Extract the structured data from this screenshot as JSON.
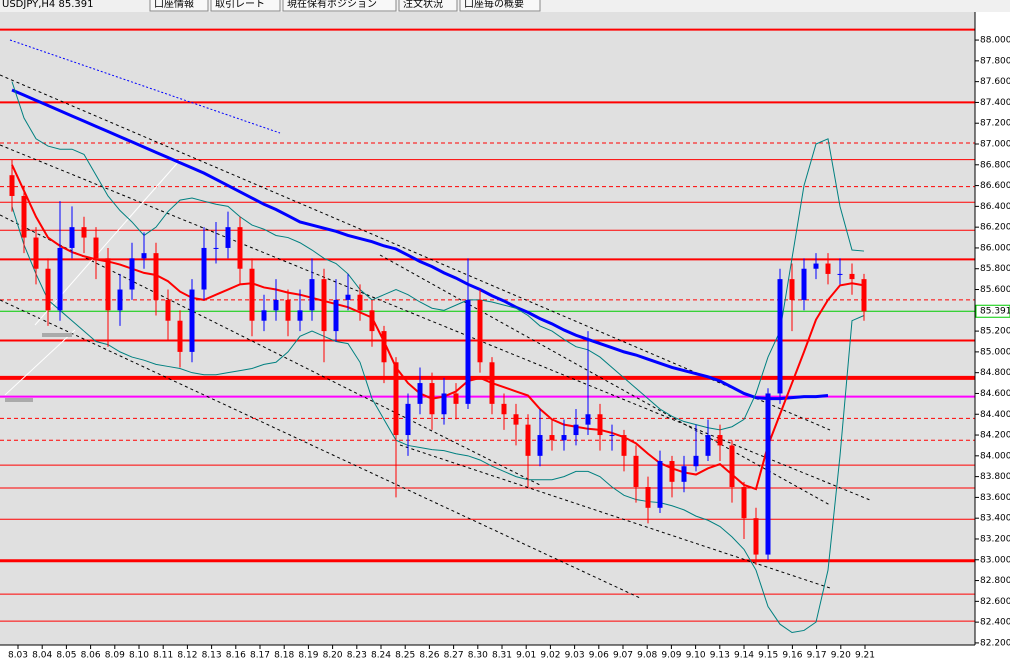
{
  "header": {
    "symbol": "USDJPY,H4 85.391",
    "tabs": [
      "口座情報",
      "取引レート",
      "現在保有ポジション",
      "注文状況",
      "口座毎の概要"
    ]
  },
  "chart_data": {
    "type": "candlestick",
    "up_color": "#0000ff",
    "down_color": "#ff0000",
    "background": "#e0e0e0",
    "grid": false,
    "ylim": [
      82.18,
      88.27
    ],
    "yticks": [
      {
        "value": 82.2,
        "label": "82.200"
      },
      {
        "value": 82.4,
        "label": "82.400"
      },
      {
        "value": 82.6,
        "label": "82.600"
      },
      {
        "value": 82.8,
        "label": "82.800"
      },
      {
        "value": 83.0,
        "label": "83.000"
      },
      {
        "value": 83.2,
        "label": "83.200"
      },
      {
        "value": 83.4,
        "label": "83.400"
      },
      {
        "value": 83.6,
        "label": "83.600"
      },
      {
        "value": 83.8,
        "label": "83.800"
      },
      {
        "value": 84.0,
        "label": "84.000"
      },
      {
        "value": 84.2,
        "label": "84.200"
      },
      {
        "value": 84.4,
        "label": "84.400"
      },
      {
        "value": 84.6,
        "label": "84.600"
      },
      {
        "value": 84.8,
        "label": "84.800"
      },
      {
        "value": 85.0,
        "label": "85.000"
      },
      {
        "value": 85.2,
        "label": "85.200"
      },
      {
        "value": 85.4,
        "label": "85.400"
      },
      {
        "value": 85.6,
        "label": "85.600"
      },
      {
        "value": 85.8,
        "label": "85.800"
      },
      {
        "value": 86.0,
        "label": "86.000"
      },
      {
        "value": 86.2,
        "label": "86.200"
      },
      {
        "value": 86.4,
        "label": "86.400"
      },
      {
        "value": 86.6,
        "label": "86.600"
      },
      {
        "value": 86.8,
        "label": "86.800"
      },
      {
        "value": 87.0,
        "label": "87.000"
      },
      {
        "value": 87.2,
        "label": "87.200"
      },
      {
        "value": 87.4,
        "label": "87.400"
      },
      {
        "value": 87.6,
        "label": "87.600"
      },
      {
        "value": 87.8,
        "label": "87.800"
      },
      {
        "value": 88.0,
        "label": "88.000"
      }
    ],
    "x_labels": [
      "8.03",
      "8.04",
      "8.05",
      "8.06",
      "8.09",
      "8.10",
      "8.11",
      "8.12",
      "8.13",
      "8.16",
      "8.17",
      "8.18",
      "8.19",
      "8.20",
      "8.23",
      "8.24",
      "8.25",
      "8.26",
      "8.27",
      "8.30",
      "8.31",
      "9.01",
      "9.02",
      "9.03",
      "9.06",
      "9.07",
      "9.08",
      "9.09",
      "9.10",
      "9.13",
      "9.14",
      "9.15",
      "9.16",
      "9.17",
      "9.20",
      "9.21"
    ],
    "current_price": {
      "value": 85.391,
      "label": "85.391",
      "color": "#00cc00"
    },
    "open": [
      86.7,
      86.5,
      86.1,
      85.8,
      85.4,
      86.0,
      86.2,
      86.1,
      85.9,
      85.4,
      85.6,
      85.9,
      85.95,
      85.5,
      85.3,
      85.0,
      85.6,
      86.0,
      86.0,
      86.2,
      85.8,
      85.3,
      85.4,
      85.5,
      85.3,
      85.4,
      85.7,
      85.2,
      85.5,
      85.55,
      85.4,
      85.2,
      84.9,
      84.2,
      84.5,
      84.7,
      84.4,
      84.6,
      84.5,
      85.5,
      84.9,
      84.5,
      84.4,
      84.3,
      84.0,
      84.2,
      84.15,
      84.2,
      84.3,
      84.4,
      84.2,
      84.2,
      84.0,
      83.7,
      83.5,
      83.95,
      83.75,
      83.9,
      84.0,
      84.2,
      84.1,
      83.7,
      83.4,
      83.05,
      84.6,
      85.7,
      85.5,
      85.8,
      85.85,
      85.75,
      85.75,
      85.7
    ],
    "high": [
      86.85,
      86.6,
      86.2,
      85.9,
      86.45,
      86.4,
      86.3,
      86.2,
      86.0,
      85.75,
      86.05,
      86.15,
      86.05,
      85.6,
      85.4,
      85.7,
      86.2,
      86.25,
      86.35,
      86.3,
      85.9,
      85.55,
      85.7,
      85.6,
      85.6,
      85.9,
      85.8,
      85.7,
      85.75,
      85.65,
      85.5,
      85.25,
      84.95,
      84.6,
      84.85,
      84.8,
      84.75,
      84.7,
      85.9,
      85.6,
      84.95,
      84.6,
      84.5,
      84.4,
      84.45,
      84.35,
      84.35,
      84.45,
      85.2,
      84.5,
      84.3,
      84.25,
      84.1,
      83.8,
      84.05,
      84.0,
      84.0,
      84.3,
      84.35,
      84.3,
      84.15,
      83.75,
      83.5,
      84.65,
      85.8,
      85.85,
      85.9,
      85.95,
      85.95,
      85.9,
      85.85,
      85.75
    ],
    "low": [
      86.35,
      85.95,
      85.65,
      85.25,
      85.3,
      85.9,
      85.95,
      85.7,
      85.05,
      85.25,
      85.5,
      85.8,
      85.35,
      85.1,
      84.85,
      84.9,
      85.5,
      85.85,
      85.9,
      85.65,
      85.15,
      85.2,
      85.3,
      85.15,
      85.2,
      85.3,
      84.9,
      85.1,
      85.4,
      85.3,
      85.05,
      84.7,
      83.6,
      84.0,
      84.4,
      84.25,
      84.3,
      84.35,
      84.45,
      84.8,
      84.4,
      84.25,
      84.1,
      83.7,
      83.9,
      84.05,
      84.05,
      84.1,
      84.2,
      84.05,
      84.05,
      83.85,
      83.55,
      83.35,
      83.45,
      83.6,
      83.65,
      83.85,
      83.95,
      83.95,
      83.55,
      83.2,
      82.95,
      83.0,
      84.5,
      85.2,
      85.4,
      85.7,
      85.65,
      85.65,
      85.55,
      85.3
    ],
    "close": [
      86.5,
      86.1,
      85.8,
      85.4,
      86.0,
      86.2,
      86.1,
      85.9,
      85.4,
      85.6,
      85.9,
      85.95,
      85.5,
      85.3,
      85.0,
      85.6,
      86.0,
      86.0,
      86.2,
      85.8,
      85.3,
      85.4,
      85.5,
      85.3,
      85.4,
      85.7,
      85.2,
      85.5,
      85.55,
      85.4,
      85.2,
      84.9,
      84.2,
      84.5,
      84.7,
      84.4,
      84.6,
      84.5,
      85.5,
      84.9,
      84.5,
      84.4,
      84.3,
      84.0,
      84.2,
      84.15,
      84.2,
      84.3,
      84.4,
      84.2,
      84.2,
      84.0,
      83.7,
      83.5,
      83.95,
      83.75,
      83.9,
      84.0,
      84.2,
      84.1,
      83.7,
      83.4,
      83.05,
      84.6,
      85.7,
      85.5,
      85.8,
      85.85,
      85.75,
      85.75,
      85.7,
      85.39
    ],
    "lines": [
      {
        "color": "#0000ff",
        "width": 3,
        "values": [
          87.52,
          87.47,
          87.42,
          87.37,
          87.32,
          87.27,
          87.22,
          87.17,
          87.12,
          87.07,
          87.02,
          86.97,
          86.92,
          86.87,
          86.82,
          86.77,
          86.72,
          86.66,
          86.6,
          86.54,
          86.48,
          86.42,
          86.37,
          86.31,
          86.25,
          86.22,
          86.19,
          86.16,
          86.12,
          86.09,
          86.06,
          86.02,
          85.99,
          85.93,
          85.87,
          85.82,
          85.76,
          85.71,
          85.65,
          85.6,
          85.54,
          85.49,
          85.43,
          85.38,
          85.32,
          85.27,
          85.21,
          85.16,
          85.12,
          85.08,
          85.04,
          85.0,
          84.97,
          84.93,
          84.89,
          84.85,
          84.82,
          84.79,
          84.76,
          84.72,
          84.66,
          84.6,
          84.56,
          84.55,
          84.55,
          84.56,
          84.57,
          84.57,
          84.58,
          null,
          null,
          null
        ]
      },
      {
        "color": "#ff0000",
        "width": 2,
        "values": [
          86.8,
          86.55,
          86.3,
          86.1,
          86.02,
          85.96,
          85.92,
          85.89,
          85.87,
          85.84,
          85.8,
          85.76,
          85.74,
          85.68,
          85.58,
          85.52,
          85.5,
          85.55,
          85.6,
          85.65,
          85.66,
          85.62,
          85.6,
          85.57,
          85.55,
          85.52,
          85.49,
          85.46,
          85.43,
          85.38,
          85.33,
          85.1,
          84.85,
          84.7,
          84.6,
          84.55,
          84.57,
          84.62,
          84.72,
          84.75,
          84.7,
          84.66,
          84.62,
          84.58,
          84.45,
          84.35,
          84.3,
          84.28,
          84.26,
          84.25,
          84.22,
          84.18,
          84.12,
          84.02,
          83.93,
          83.88,
          83.84,
          83.82,
          83.88,
          83.92,
          83.82,
          83.72,
          83.68,
          84.1,
          84.4,
          84.7,
          85.0,
          85.31,
          85.5,
          85.64,
          85.66,
          85.64
        ]
      },
      {
        "color": "#008080",
        "width": 1,
        "values": [
          87.6,
          87.25,
          87.05,
          86.98,
          86.95,
          86.95,
          86.9,
          86.7,
          86.5,
          86.36,
          86.25,
          86.12,
          86.2,
          86.35,
          86.46,
          86.48,
          86.45,
          86.42,
          86.4,
          86.3,
          86.22,
          86.18,
          86.12,
          86.1,
          86.05,
          85.98,
          85.9,
          85.85,
          85.75,
          85.6,
          85.5,
          85.55,
          85.6,
          85.55,
          85.48,
          85.42,
          85.4,
          85.45,
          85.5,
          85.5,
          85.48,
          85.45,
          85.42,
          85.35,
          85.25,
          85.2,
          85.12,
          85.05,
          85.02,
          84.95,
          84.85,
          84.75,
          84.65,
          84.55,
          84.45,
          84.38,
          84.33,
          84.3,
          84.27,
          84.25,
          84.28,
          84.35,
          84.6,
          84.95,
          85.2,
          85.9,
          86.6,
          87.0,
          87.05,
          86.4,
          85.98,
          85.97
        ]
      },
      {
        "color": "#008080",
        "width": 1,
        "values": [
          86.4,
          86.03,
          85.75,
          85.5,
          85.4,
          85.3,
          85.2,
          85.1,
          85.07,
          85.0,
          84.95,
          84.92,
          84.88,
          84.86,
          84.84,
          84.8,
          84.78,
          84.78,
          84.8,
          84.82,
          84.84,
          84.88,
          84.9,
          85.0,
          85.15,
          85.2,
          85.15,
          85.1,
          85.08,
          84.9,
          84.55,
          84.35,
          84.15,
          84.1,
          84.08,
          84.06,
          84.05,
          84.02,
          84.0,
          83.96,
          83.9,
          83.85,
          83.8,
          83.77,
          83.77,
          83.77,
          83.8,
          83.85,
          83.85,
          83.8,
          83.7,
          83.62,
          83.58,
          83.56,
          83.55,
          83.52,
          83.48,
          83.42,
          83.38,
          83.32,
          83.22,
          83.1,
          82.9,
          82.55,
          82.38,
          82.3,
          82.32,
          82.4,
          82.9,
          84.0,
          85.3,
          85.35
        ]
      }
    ],
    "levels": [
      {
        "value": 88.1,
        "color": "#ff0000",
        "width": 2,
        "dash": false
      },
      {
        "value": 87.4,
        "color": "#ff0000",
        "width": 2,
        "dash": false
      },
      {
        "value": 87.01,
        "color": "#ff0000",
        "width": 1,
        "dash": true
      },
      {
        "value": 86.85,
        "color": "#ff0000",
        "width": 1,
        "dash": false
      },
      {
        "value": 86.59,
        "color": "#ff0000",
        "width": 1,
        "dash": true
      },
      {
        "value": 86.44,
        "color": "#ff0000",
        "width": 1,
        "dash": false
      },
      {
        "value": 86.17,
        "color": "#ff0000",
        "width": 1,
        "dash": false
      },
      {
        "value": 85.89,
        "color": "#ff0000",
        "width": 2,
        "dash": false
      },
      {
        "value": 85.5,
        "color": "#ff0000",
        "width": 1,
        "dash": true
      },
      {
        "value": 85.11,
        "color": "#ff0000",
        "width": 2,
        "dash": false
      },
      {
        "value": 84.75,
        "color": "#ff0000",
        "width": 4,
        "dash": false
      },
      {
        "value": 84.57,
        "color": "#ff00ff",
        "width": 2,
        "dash": false
      },
      {
        "value": 84.36,
        "color": "#ff0000",
        "width": 1,
        "dash": true
      },
      {
        "value": 84.15,
        "color": "#ff0000",
        "width": 1,
        "dash": true
      },
      {
        "value": 83.91,
        "color": "#ff0000",
        "width": 1,
        "dash": false
      },
      {
        "value": 83.69,
        "color": "#ff0000",
        "width": 1,
        "dash": false
      },
      {
        "value": 83.39,
        "color": "#ff0000",
        "width": 1,
        "dash": false
      },
      {
        "value": 82.99,
        "color": "#ff0000",
        "width": 3,
        "dash": false
      },
      {
        "value": 82.67,
        "color": "#ff0000",
        "width": 1,
        "dash": false
      },
      {
        "value": 82.41,
        "color": "#ff0000",
        "width": 1,
        "dash": false
      }
    ]
  }
}
